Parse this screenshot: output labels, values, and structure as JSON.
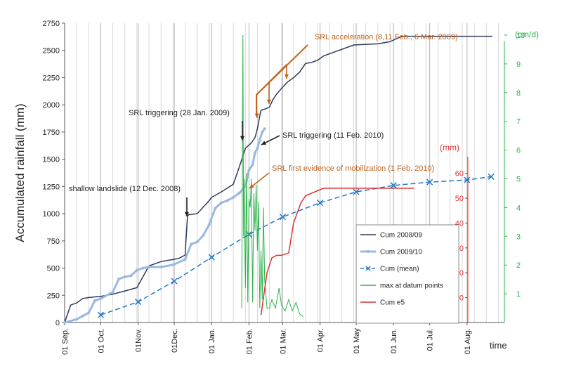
{
  "chart_data": {
    "type": "line",
    "ylabel": "Accumulated rainfall (mm)",
    "xlabel": "time",
    "ylim": [
      0,
      2750
    ],
    "y_ticks": [
      0,
      250,
      500,
      750,
      1000,
      1250,
      1500,
      1750,
      2000,
      2250,
      2500,
      2750
    ],
    "x_ticks": [
      "01 Sep.",
      "01 Oct.",
      "01Nov.",
      "01Dec.",
      "01 Jan.",
      "01 Feb.",
      "01 Mar.",
      "01 Apr.",
      "01 May",
      "01 Jun.",
      "01 Jul.",
      "01 Aug."
    ],
    "x_day_range": [
      0,
      365
    ],
    "right_axis_cm": {
      "label": "(cm/d)",
      "range": [
        0,
        10
      ],
      "ticks": [
        1,
        2,
        3,
        4,
        5,
        6,
        7,
        8,
        9,
        10
      ],
      "color": "#2db34a"
    },
    "right_axis_mm": {
      "label": "(mm)",
      "range": [
        0,
        63
      ],
      "ticks": [
        10,
        20,
        30,
        40,
        50,
        60
      ],
      "color": "#e03030"
    },
    "series": [
      {
        "name": "Cum 2008/09",
        "color": "#2e3a5c",
        "axis": "left",
        "x": [
          0,
          5,
          10,
          15,
          20,
          30,
          40,
          50,
          60,
          70,
          80,
          90,
          95,
          100,
          102,
          103,
          110,
          120,
          122,
          130,
          140,
          145,
          150,
          152,
          155,
          158,
          160,
          162,
          163,
          166,
          170,
          173,
          176,
          180,
          185,
          190,
          195,
          200,
          205,
          210,
          215,
          220,
          240,
          260,
          270,
          280,
          300,
          320,
          355
        ],
        "y": [
          0,
          160,
          180,
          220,
          230,
          240,
          260,
          290,
          320,
          520,
          560,
          580,
          590,
          620,
          980,
          990,
          1000,
          1120,
          1150,
          1200,
          1270,
          1430,
          1600,
          1620,
          1650,
          1700,
          1780,
          1900,
          1950,
          1960,
          1980,
          2050,
          2100,
          2150,
          2210,
          2250,
          2300,
          2380,
          2390,
          2410,
          2450,
          2470,
          2550,
          2560,
          2580,
          2630,
          2630,
          2630,
          2630
        ]
      },
      {
        "name": "Cum 2009/10",
        "color": "#9ab9e0",
        "axis": "left",
        "x": [
          0,
          10,
          15,
          20,
          25,
          30,
          40,
          45,
          50,
          55,
          60,
          65,
          70,
          80,
          90,
          100,
          105,
          110,
          115,
          120,
          125,
          130,
          135,
          140,
          145,
          150,
          153,
          156,
          158,
          160,
          162,
          164,
          166
        ],
        "y": [
          0,
          30,
          60,
          90,
          200,
          220,
          280,
          400,
          420,
          430,
          480,
          500,
          510,
          510,
          530,
          580,
          720,
          740,
          800,
          900,
          1050,
          1100,
          1120,
          1150,
          1190,
          1250,
          1400,
          1450,
          1560,
          1600,
          1680,
          1750,
          1780
        ]
      },
      {
        "name": "Cum (mean)",
        "color": "#1f78c8",
        "axis": "left",
        "x": [
          30,
          61,
          91,
          122,
          153,
          181,
          212,
          242,
          273,
          303,
          334,
          354
        ],
        "y": [
          70,
          190,
          380,
          600,
          810,
          970,
          1100,
          1200,
          1260,
          1290,
          1310,
          1340
        ]
      },
      {
        "name": "max at datum points",
        "color": "#2db34a",
        "axis": "right_cm",
        "x": [
          147,
          148,
          148.5,
          149,
          150,
          151,
          152,
          153,
          154,
          155,
          156,
          157,
          158,
          159,
          160,
          161,
          162,
          163,
          164,
          165,
          166,
          167,
          168,
          170,
          172,
          175,
          178,
          180,
          183,
          186,
          189,
          192,
          195,
          198
        ],
        "y": [
          0.5,
          10,
          3,
          5,
          1.2,
          5.2,
          0.7,
          4.3,
          4,
          5,
          0.7,
          4.5,
          3.2,
          4.8,
          2.5,
          4.2,
          0.5,
          2.5,
          0.8,
          4,
          1.5,
          1,
          0.5,
          0.5,
          0.8,
          0.5,
          1.2,
          0.6,
          0.4,
          0.8,
          0.4,
          0.7,
          0.3,
          0.2
        ]
      },
      {
        "name": "Cum e5",
        "color": "#e03030",
        "axis": "right_mm",
        "x": [
          163,
          165,
          168,
          172,
          176,
          180,
          186,
          190,
          193,
          196,
          200,
          205,
          215,
          225,
          240,
          260,
          275,
          290
        ],
        "y": [
          3,
          10,
          20,
          26,
          27,
          27,
          28,
          40,
          44,
          48,
          51,
          52,
          54,
          54,
          54,
          54,
          54,
          54
        ]
      }
    ],
    "annotations": [
      {
        "text": "SRL acceleration (8,11 Feb., 6 Mar. 2009)",
        "color": "#c0641e"
      },
      {
        "text": "SRL  triggering (28 Jan. 2009)",
        "color": "#222222"
      },
      {
        "text": "SRL triggering (11 Feb. 2010)",
        "color": "#222222"
      },
      {
        "text": "SRL first evidence of mobilization (1 Feb. 2010)",
        "color": "#c0641e"
      },
      {
        "text": "shallow landslide (12 Dec. 2008)",
        "color": "#222222"
      }
    ],
    "legend_position": "bottom-right",
    "grid": "vertical"
  }
}
